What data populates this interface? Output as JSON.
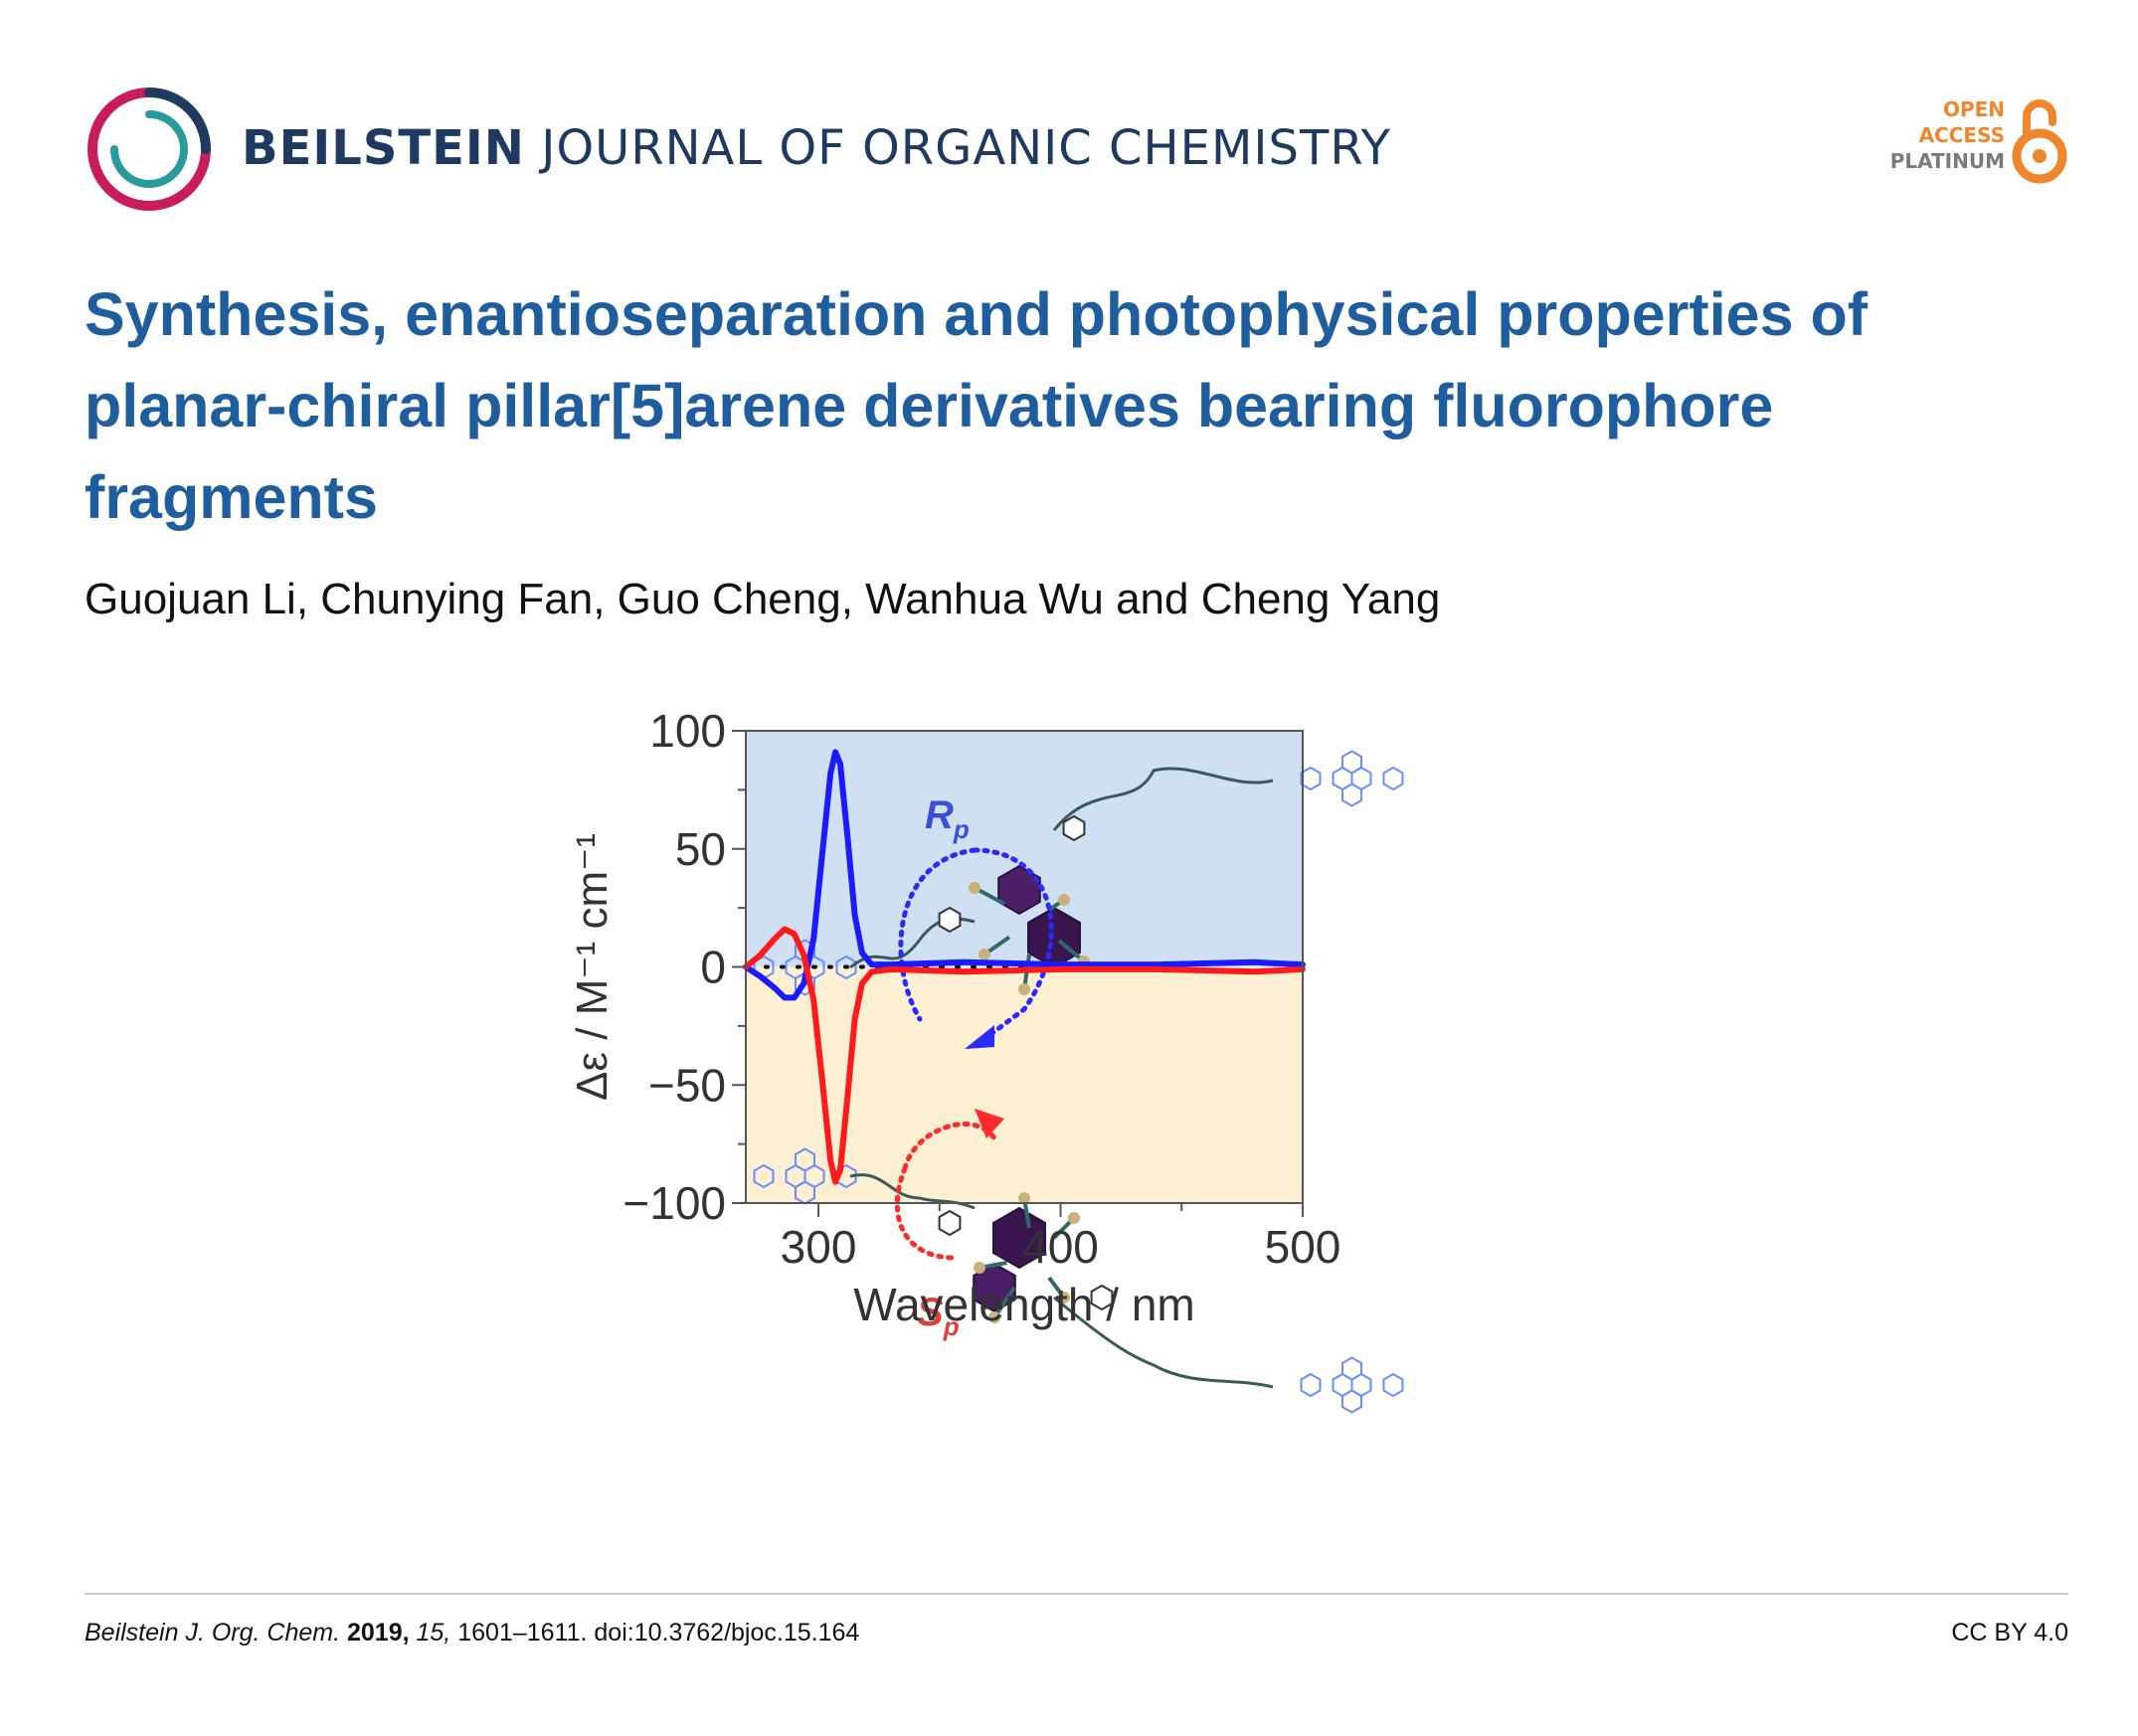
{
  "header": {
    "journal_bold": "BEILSTEIN",
    "journal_rest": " JOURNAL OF ORGANIC CHEMISTRY",
    "open_access": {
      "line1": "OPEN",
      "line2": "ACCESS",
      "line3": "PLATINUM"
    }
  },
  "article": {
    "title": "Synthesis, enantioseparation and photophysical properties of planar-chiral pillar[5]arene derivatives bearing fluorophore fragments",
    "authors": "Guojuan Li, Chunying Fan, Guo Cheng, Wanhua Wu and Cheng Yang"
  },
  "figure": {
    "chart_data": {
      "type": "line",
      "xlabel": "Wavelength / nm",
      "ylabel": "Δε / M⁻¹ cm⁻¹",
      "xlim": [
        270,
        500
      ],
      "ylim": [
        -100,
        100
      ],
      "x_ticks": [
        300,
        400,
        500
      ],
      "y_ticks": [
        100,
        50,
        0,
        -50,
        -100
      ],
      "series": [
        {
          "name": "Rp",
          "color": "#1a1aff",
          "points": [
            [
              270,
              0
            ],
            [
              276,
              -4
            ],
            [
              282,
              -9
            ],
            [
              286,
              -13
            ],
            [
              290,
              -13
            ],
            [
              294,
              -7
            ],
            [
              298,
              12
            ],
            [
              302,
              52
            ],
            [
              305,
              82
            ],
            [
              307,
              91
            ],
            [
              309,
              86
            ],
            [
              312,
              55
            ],
            [
              315,
              22
            ],
            [
              318,
              6
            ],
            [
              322,
              1
            ],
            [
              330,
              1
            ],
            [
              360,
              2
            ],
            [
              400,
              1
            ],
            [
              440,
              1
            ],
            [
              480,
              2
            ],
            [
              500,
              1
            ]
          ]
        },
        {
          "name": "Sp",
          "color": "#ff1a1a",
          "points": [
            [
              270,
              0
            ],
            [
              276,
              5
            ],
            [
              282,
              12
            ],
            [
              286,
              16
            ],
            [
              290,
              14
            ],
            [
              294,
              5
            ],
            [
              298,
              -14
            ],
            [
              302,
              -52
            ],
            [
              305,
              -82
            ],
            [
              307,
              -91
            ],
            [
              309,
              -86
            ],
            [
              312,
              -55
            ],
            [
              315,
              -22
            ],
            [
              318,
              -7
            ],
            [
              322,
              -2
            ],
            [
              330,
              -1
            ],
            [
              360,
              -2
            ],
            [
              400,
              -1
            ],
            [
              440,
              -1
            ],
            [
              480,
              -2
            ],
            [
              500,
              -1
            ]
          ]
        }
      ],
      "annotations": [
        {
          "text": "R",
          "subscript": "p",
          "color": "#3a4fd8"
        },
        {
          "text": "S",
          "subscript": "p",
          "color": "#e0403a"
        }
      ],
      "background": {
        "positive_region": "#cfe0f2",
        "negative_region": "#fdf0d2"
      },
      "zero_line": "dotted"
    }
  },
  "footer": {
    "journal_abbrev": "Beilstein J. Org. Chem.",
    "year": "2019,",
    "volume": "15,",
    "pages_doi": "1601–1611. doi:10.3762/bjoc.15.164",
    "license": "CC BY 4.0"
  }
}
